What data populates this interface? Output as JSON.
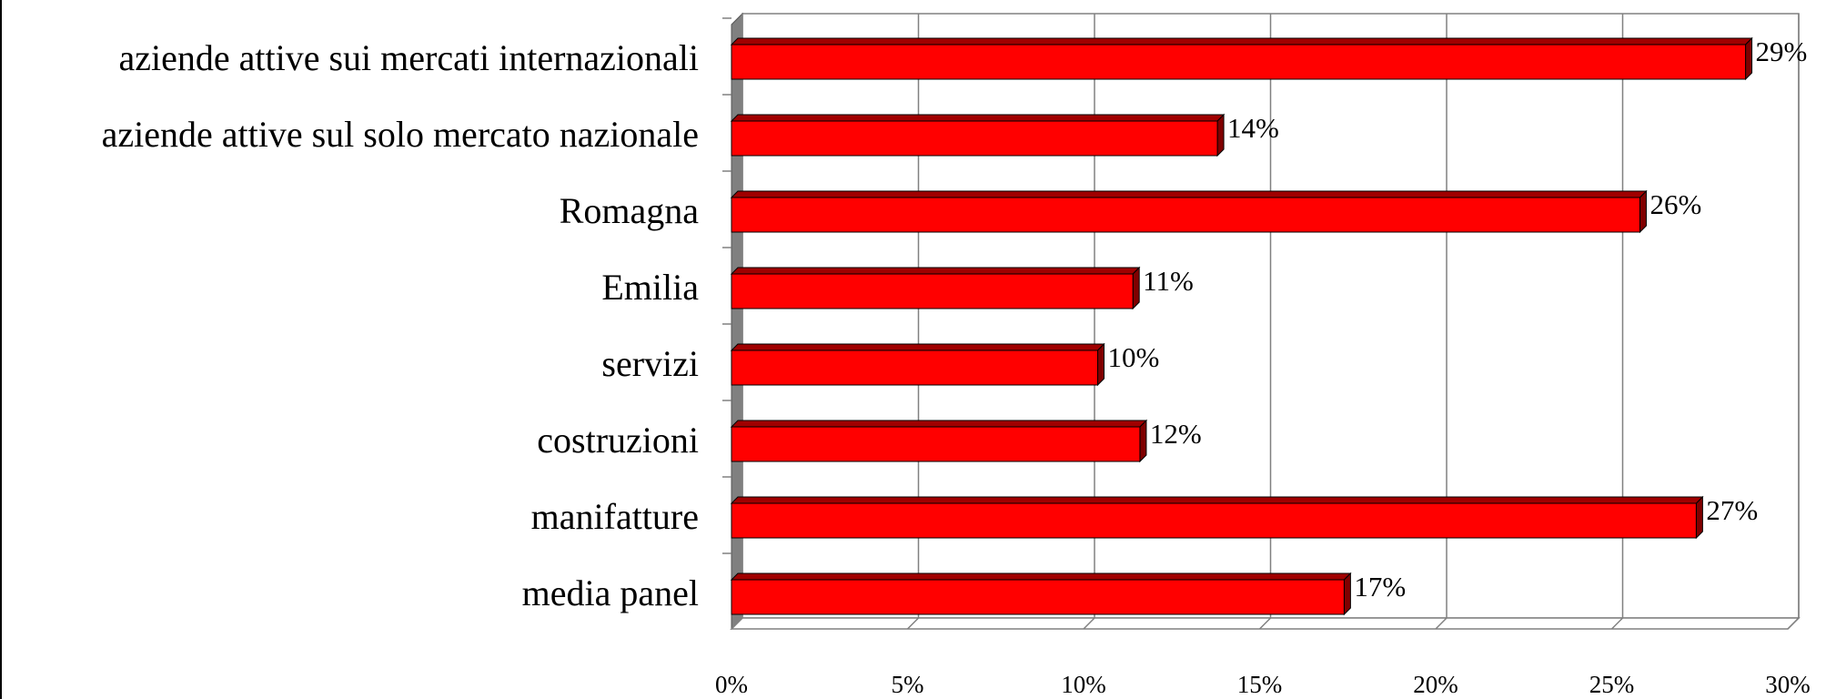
{
  "chart_data": {
    "type": "bar",
    "orientation": "horizontal",
    "categories": [
      "aziende attive sui mercati internazionali",
      "aziende attive sul solo mercato nazionale",
      "Romagna",
      "Emilia",
      "servizi",
      "costruzioni",
      "manifatture",
      "media panel"
    ],
    "values": [
      28.8,
      13.8,
      25.8,
      11.4,
      10.4,
      11.6,
      27.4,
      17.4
    ],
    "value_labels": [
      "29%",
      "14%",
      "26%",
      "11%",
      "10%",
      "12%",
      "27%",
      "17%"
    ],
    "color": "#ff0000",
    "xlim": [
      0,
      30
    ],
    "xticks": [
      {
        "value": 0,
        "label": "0%"
      },
      {
        "value": 5,
        "label": "5%"
      },
      {
        "value": 10,
        "label": "10%"
      },
      {
        "value": 15,
        "label": "15%"
      },
      {
        "value": 20,
        "label": "20%"
      },
      {
        "value": 25,
        "label": "25%"
      },
      {
        "value": 30,
        "label": "30%"
      }
    ],
    "grid": true
  }
}
